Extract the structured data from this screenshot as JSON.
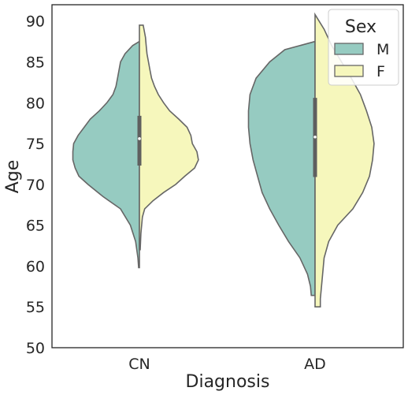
{
  "chart_data": {
    "type": "violin",
    "split": true,
    "xlabel": "Diagnosis",
    "ylabel": "Age",
    "ylim": [
      50,
      92
    ],
    "yticks": [
      50,
      55,
      60,
      65,
      70,
      75,
      80,
      85,
      90
    ],
    "categories": [
      "CN",
      "AD"
    ],
    "grid": false,
    "legend": {
      "title": "Sex",
      "placement": "top-right",
      "entries": [
        {
          "label": "M",
          "color": "#96cbc1"
        },
        {
          "label": "F",
          "color": "#f6f7bc"
        }
      ]
    },
    "series": [
      {
        "name": "M",
        "color": "#96cbc1",
        "profiles": [
          [
            [
              59.8,
              0.01
            ],
            [
              61,
              0.02
            ],
            [
              63,
              0.05
            ],
            [
              65,
              0.12
            ],
            [
              67,
              0.25
            ],
            [
              68.5,
              0.48
            ],
            [
              70,
              0.68
            ],
            [
              71,
              0.8
            ],
            [
              72,
              0.85
            ],
            [
              73,
              0.88
            ],
            [
              74,
              0.88
            ],
            [
              75,
              0.87
            ],
            [
              76,
              0.81
            ],
            [
              77,
              0.73
            ],
            [
              78,
              0.65
            ],
            [
              79,
              0.53
            ],
            [
              80,
              0.43
            ],
            [
              81,
              0.35
            ],
            [
              82,
              0.31
            ],
            [
              83,
              0.29
            ],
            [
              84,
              0.27
            ],
            [
              85,
              0.25
            ],
            [
              86,
              0.19
            ],
            [
              87,
              0.09
            ],
            [
              87.5,
              0.0
            ]
          ],
          [
            [
              56.4,
              0.05
            ],
            [
              57.5,
              0.06
            ],
            [
              59,
              0.1
            ],
            [
              61,
              0.2
            ],
            [
              63,
              0.35
            ],
            [
              65,
              0.48
            ],
            [
              67,
              0.6
            ],
            [
              69,
              0.7
            ],
            [
              71,
              0.76
            ],
            [
              73,
              0.82
            ],
            [
              75,
              0.86
            ],
            [
              77,
              0.88
            ],
            [
              79,
              0.88
            ],
            [
              81,
              0.86
            ],
            [
              83,
              0.78
            ],
            [
              85,
              0.6
            ],
            [
              86.5,
              0.4
            ],
            [
              87.5,
              0.0
            ]
          ]
        ]
      },
      {
        "name": "F",
        "color": "#f6f7bc",
        "profiles": [
          [
            [
              62,
              0.01
            ],
            [
              64,
              0.02
            ],
            [
              66,
              0.04
            ],
            [
              67,
              0.07
            ],
            [
              68,
              0.18
            ],
            [
              69,
              0.32
            ],
            [
              70,
              0.48
            ],
            [
              71,
              0.6
            ],
            [
              72,
              0.73
            ],
            [
              73,
              0.78
            ],
            [
              74,
              0.76
            ],
            [
              75,
              0.7
            ],
            [
              76,
              0.68
            ],
            [
              77,
              0.63
            ],
            [
              78,
              0.52
            ],
            [
              79,
              0.4
            ],
            [
              80,
              0.32
            ],
            [
              81,
              0.25
            ],
            [
              82,
              0.2
            ],
            [
              83,
              0.16
            ],
            [
              84,
              0.14
            ],
            [
              85,
              0.12
            ],
            [
              86,
              0.1
            ],
            [
              87,
              0.09
            ],
            [
              88,
              0.08
            ],
            [
              89.5,
              0.05
            ]
          ],
          [
            [
              55,
              0.07
            ],
            [
              56,
              0.07
            ],
            [
              57,
              0.08
            ],
            [
              59,
              0.1
            ],
            [
              61,
              0.12
            ],
            [
              63,
              0.18
            ],
            [
              65,
              0.3
            ],
            [
              67,
              0.5
            ],
            [
              69,
              0.63
            ],
            [
              71,
              0.72
            ],
            [
              73,
              0.76
            ],
            [
              75,
              0.78
            ],
            [
              77,
              0.75
            ],
            [
              79,
              0.68
            ],
            [
              81,
              0.6
            ],
            [
              83,
              0.48
            ],
            [
              85,
              0.35
            ],
            [
              87,
              0.22
            ],
            [
              89,
              0.12
            ],
            [
              90.8,
              0.0
            ]
          ]
        ]
      }
    ],
    "box": [
      {
        "category": "CN",
        "q1": 72.3,
        "q3": 78.4,
        "median": 75.6
      },
      {
        "category": "AD",
        "q1": 70.9,
        "q3": 80.6,
        "median": 75.8
      }
    ]
  }
}
